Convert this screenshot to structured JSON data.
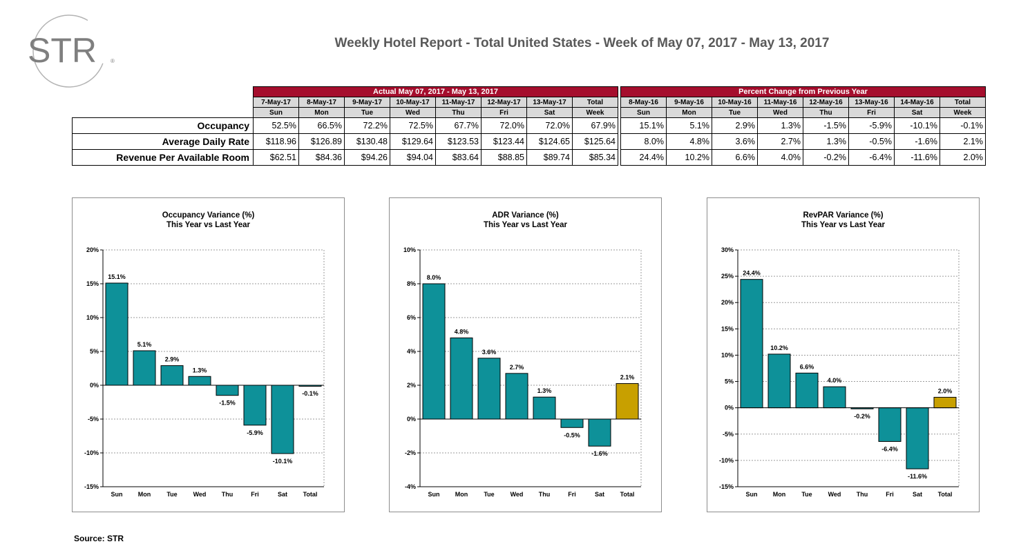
{
  "logo": {
    "text": "STR",
    "mark": "®",
    "color": "#7f7f7f"
  },
  "title": "Weekly Hotel Report - Total United States - Week of May 07, 2017 - May 13, 2017",
  "table": {
    "actual_header": "Actual May 07, 2017 - May 13, 2017",
    "pct_header": "Percent Change from Previous Year",
    "actual_dates": [
      "7-May-17",
      "8-May-17",
      "9-May-17",
      "10-May-17",
      "11-May-17",
      "12-May-17",
      "13-May-17",
      "Total"
    ],
    "actual_days": [
      "Sun",
      "Mon",
      "Tue",
      "Wed",
      "Thu",
      "Fri",
      "Sat",
      "Week"
    ],
    "pct_dates": [
      "8-May-16",
      "9-May-16",
      "10-May-16",
      "11-May-16",
      "12-May-16",
      "13-May-16",
      "14-May-16",
      "Total"
    ],
    "pct_days": [
      "Sun",
      "Mon",
      "Tue",
      "Wed",
      "Thu",
      "Fri",
      "Sat",
      "Week"
    ],
    "rows": [
      {
        "label": "Occupancy",
        "actual": [
          "52.5%",
          "66.5%",
          "72.2%",
          "72.5%",
          "67.7%",
          "72.0%",
          "72.0%",
          "67.9%"
        ],
        "pct": [
          "15.1%",
          "5.1%",
          "2.9%",
          "1.3%",
          "-1.5%",
          "-5.9%",
          "-10.1%",
          "-0.1%"
        ]
      },
      {
        "label": "Average Daily Rate",
        "actual": [
          "$118.96",
          "$126.89",
          "$130.48",
          "$129.64",
          "$123.53",
          "$123.44",
          "$124.65",
          "$125.64"
        ],
        "pct": [
          "8.0%",
          "4.8%",
          "3.6%",
          "2.7%",
          "1.3%",
          "-0.5%",
          "-1.6%",
          "2.1%"
        ]
      },
      {
        "label": "Revenue Per Available Room",
        "actual": [
          "$62.51",
          "$84.36",
          "$94.26",
          "$94.04",
          "$83.64",
          "$88.85",
          "$89.74",
          "$85.34"
        ],
        "pct": [
          "24.4%",
          "10.2%",
          "6.6%",
          "4.0%",
          "-0.2%",
          "-6.4%",
          "-11.6%",
          "2.0%"
        ]
      }
    ]
  },
  "chart_data": [
    {
      "type": "bar",
      "title": "Occupancy Variance (%)",
      "subtitle": "This Year vs Last Year",
      "categories": [
        "Sun",
        "Mon",
        "Tue",
        "Wed",
        "Thu",
        "Fri",
        "Sat",
        "Total"
      ],
      "values": [
        15.1,
        5.1,
        2.9,
        1.3,
        -1.5,
        -5.9,
        -10.1,
        -0.1
      ],
      "labels": [
        "15.1%",
        "5.1%",
        "2.9%",
        "1.3%",
        "-1.5%",
        "-5.9%",
        "-10.1%",
        "-0.1%"
      ],
      "ylim": [
        -15,
        20
      ],
      "ystep": 5,
      "yticks": [
        "-15%",
        "-10%",
        "-5%",
        "0%",
        "5%",
        "10%",
        "15%",
        "20%"
      ],
      "bar_color": "#0e9199",
      "total_color": "#0e9199",
      "grid": true
    },
    {
      "type": "bar",
      "title": "ADR Variance (%)",
      "subtitle": "This Year vs Last Year",
      "categories": [
        "Sun",
        "Mon",
        "Tue",
        "Wed",
        "Thu",
        "Fri",
        "Sat",
        "Total"
      ],
      "values": [
        8.0,
        4.8,
        3.6,
        2.7,
        1.3,
        -0.5,
        -1.6,
        2.1
      ],
      "labels": [
        "8.0%",
        "4.8%",
        "3.6%",
        "2.7%",
        "1.3%",
        "-0.5%",
        "-1.6%",
        "2.1%"
      ],
      "ylim": [
        -4,
        10
      ],
      "ystep": 2,
      "yticks": [
        "-4%",
        "-2%",
        "0%",
        "2%",
        "4%",
        "6%",
        "8%",
        "10%"
      ],
      "bar_color": "#0e9199",
      "total_color": "#c8a000",
      "grid": true
    },
    {
      "type": "bar",
      "title": "RevPAR Variance (%)",
      "subtitle": "This Year vs Last Year",
      "categories": [
        "Sun",
        "Mon",
        "Tue",
        "Wed",
        "Thu",
        "Fri",
        "Sat",
        "Total"
      ],
      "values": [
        24.4,
        10.2,
        6.6,
        4.0,
        -0.2,
        -6.4,
        -11.6,
        2.0
      ],
      "labels": [
        "24.4%",
        "10.2%",
        "6.6%",
        "4.0%",
        "-0.2%",
        "-6.4%",
        "-11.6%",
        "2.0%"
      ],
      "ylim": [
        -15,
        30
      ],
      "ystep": 5,
      "yticks": [
        "-15%",
        "-10%",
        "-5%",
        "0%",
        "5%",
        "10%",
        "15%",
        "20%",
        "25%",
        "30%"
      ],
      "bar_color": "#0e9199",
      "total_color": "#c8a000",
      "grid": true
    }
  ],
  "source": "Source: STR"
}
